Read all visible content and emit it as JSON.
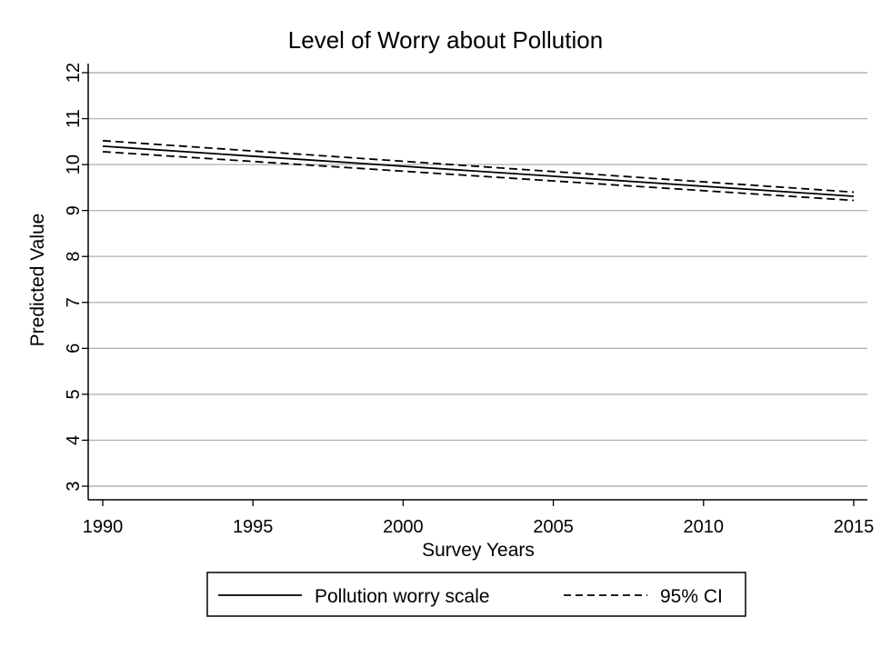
{
  "chart_data": {
    "type": "line",
    "title": "Level of Worry about Pollution",
    "xlabel": "Survey Years",
    "ylabel": "Predicted Value",
    "xlim": [
      1990,
      2015
    ],
    "ylim": [
      3,
      12
    ],
    "xticks": [
      1990,
      1995,
      2000,
      2005,
      2010,
      2015
    ],
    "yticks": [
      3,
      4,
      5,
      6,
      7,
      8,
      9,
      10,
      11,
      12
    ],
    "grid": "horizontal",
    "legend_position": "bottom",
    "series": [
      {
        "name": "Pollution worry scale",
        "style": "solid",
        "x": [
          1990,
          2015
        ],
        "y": [
          10.4,
          9.31
        ]
      },
      {
        "name": "95% CI",
        "style": "dashed",
        "x": [
          1990,
          2015
        ],
        "y": [
          10.52,
          9.4
        ]
      },
      {
        "name": "",
        "style": "dashed",
        "x": [
          1990,
          2015
        ],
        "y": [
          10.28,
          9.22
        ]
      }
    ],
    "legend": [
      {
        "label": "Pollution worry scale",
        "style": "solid"
      },
      {
        "label": "95% CI",
        "style": "dashed"
      }
    ]
  },
  "colors": {
    "line": "#000000",
    "grid": "#b4b4b4",
    "axis": "#000000",
    "background": "#ffffff"
  }
}
